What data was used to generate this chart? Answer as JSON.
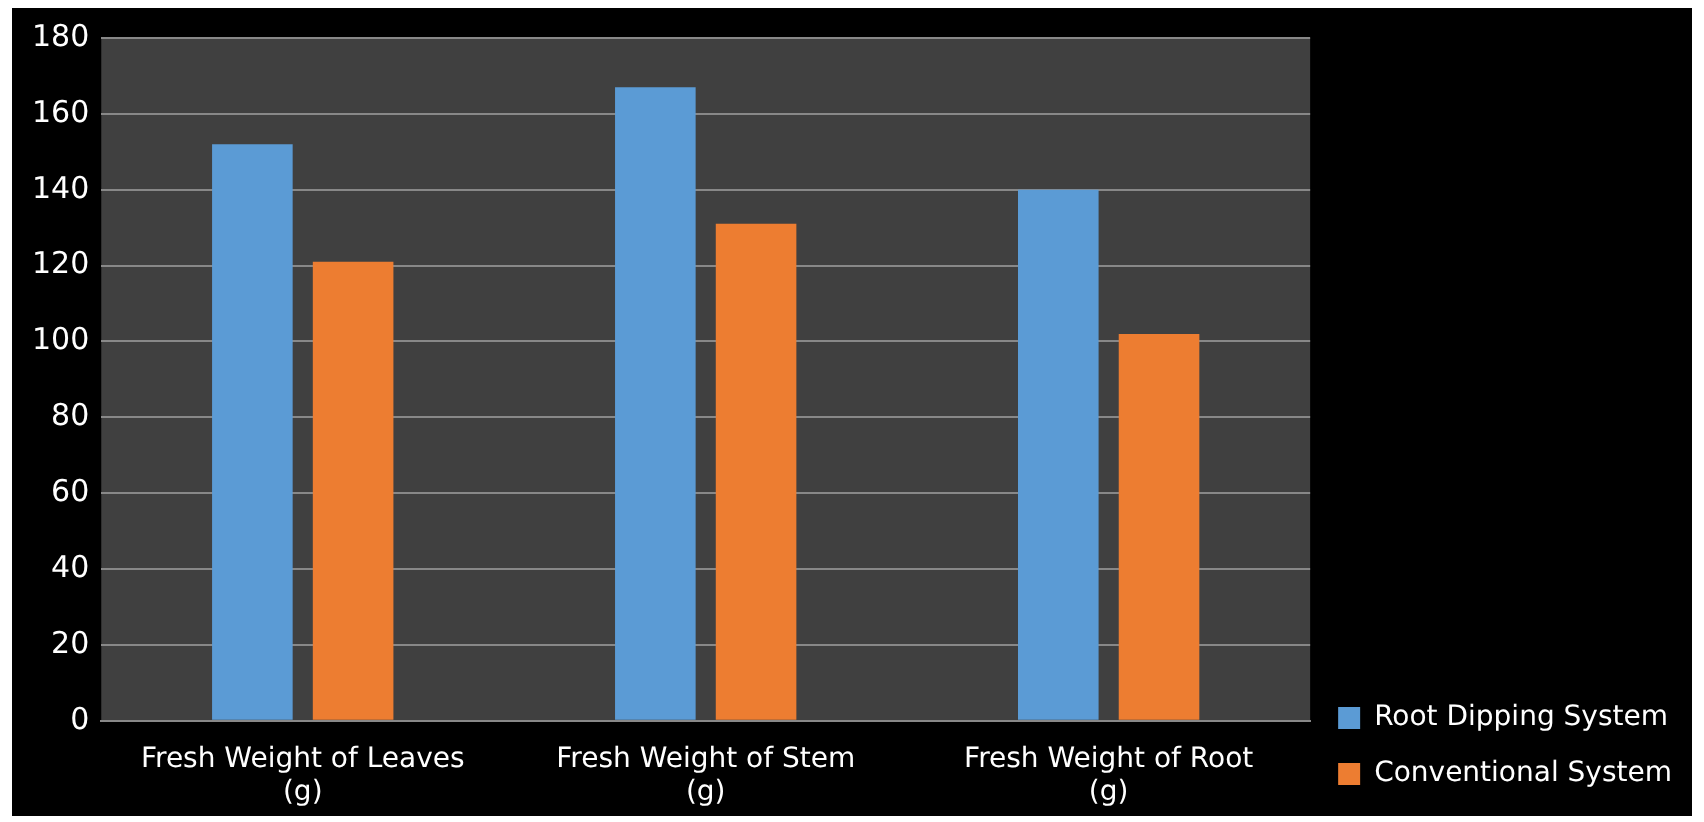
{
  "chart_data": {
    "type": "bar",
    "categories": [
      "Fresh Weight of Leaves (g)",
      "Fresh Weight of Stem (g)",
      "Fresh Weight of Root (g)"
    ],
    "series": [
      {
        "name": "Root Dipping System",
        "color": "#5b9bd5",
        "values": [
          152,
          167,
          140
        ]
      },
      {
        "name": "Conventional System",
        "color": "#ed7d31",
        "values": [
          121,
          131,
          102
        ]
      }
    ],
    "ylim": [
      0,
      180
    ],
    "yticks": [
      0,
      20,
      40,
      60,
      80,
      100,
      120,
      140,
      160,
      180
    ],
    "grid": "y",
    "legend": "bottom right"
  }
}
